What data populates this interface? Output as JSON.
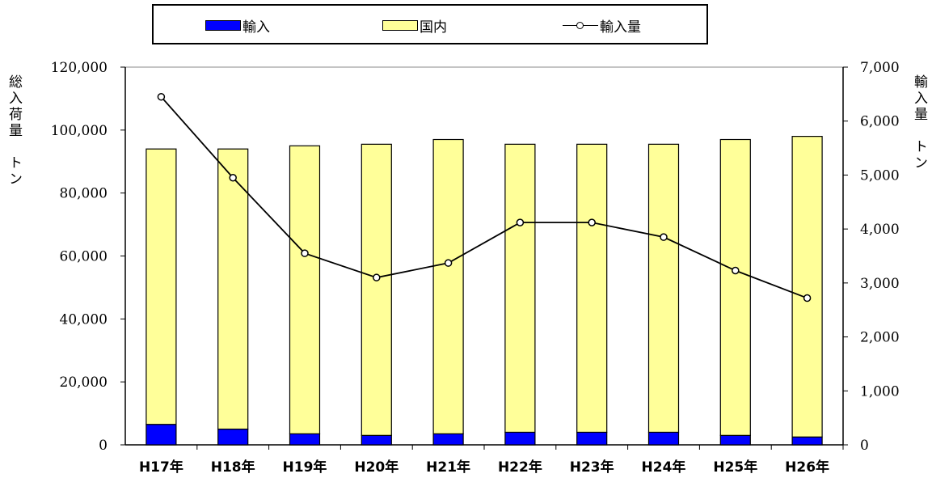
{
  "chart_data": {
    "type": "bar",
    "stacked": true,
    "categories": [
      "H17年",
      "H18年",
      "H19年",
      "H20年",
      "H21年",
      "H22年",
      "H23年",
      "H24年",
      "H25年",
      "H26年"
    ],
    "series": [
      {
        "name": "輸入",
        "kind": "bar",
        "axis": "left",
        "color": "#0000ff",
        "values": [
          6500,
          5000,
          3500,
          3000,
          3500,
          4000,
          4000,
          4000,
          3000,
          2500
        ]
      },
      {
        "name": "国内",
        "kind": "bar",
        "axis": "left",
        "color": "#ffff99",
        "values": [
          87500,
          89000,
          91500,
          92500,
          93500,
          91500,
          91500,
          91500,
          94000,
          95500
        ]
      },
      {
        "name": "輸入量",
        "kind": "line",
        "axis": "right",
        "color": "#000000",
        "marker": "open-circle",
        "values": [
          6450,
          4950,
          3550,
          3100,
          3370,
          4120,
          4120,
          3850,
          3230,
          2720
        ]
      }
    ],
    "y_left": {
      "label_lines": [
        "総",
        "入",
        "荷",
        "量",
        "ト",
        "ン"
      ],
      "lim": [
        0,
        120000
      ],
      "step": 20000,
      "ticks": [
        "0",
        "20,000",
        "40,000",
        "60,000",
        "80,000",
        "100,000",
        "120,000"
      ]
    },
    "y_right": {
      "label_lines": [
        "輸",
        "入",
        "量",
        "ト",
        "ン"
      ],
      "lim": [
        0,
        7000
      ],
      "step": 1000,
      "ticks": [
        "0",
        "1,000",
        "2,000",
        "3,000",
        "4,000",
        "5,000",
        "6,000",
        "7,000"
      ]
    },
    "legend_position": "top",
    "grid": false
  },
  "legend": {
    "import_label": "輸入",
    "domestic_label": "国内",
    "volume_label": "輸入量"
  },
  "axis_titles": {
    "left": "総入荷量　トン",
    "right": "輸入量　トン"
  }
}
